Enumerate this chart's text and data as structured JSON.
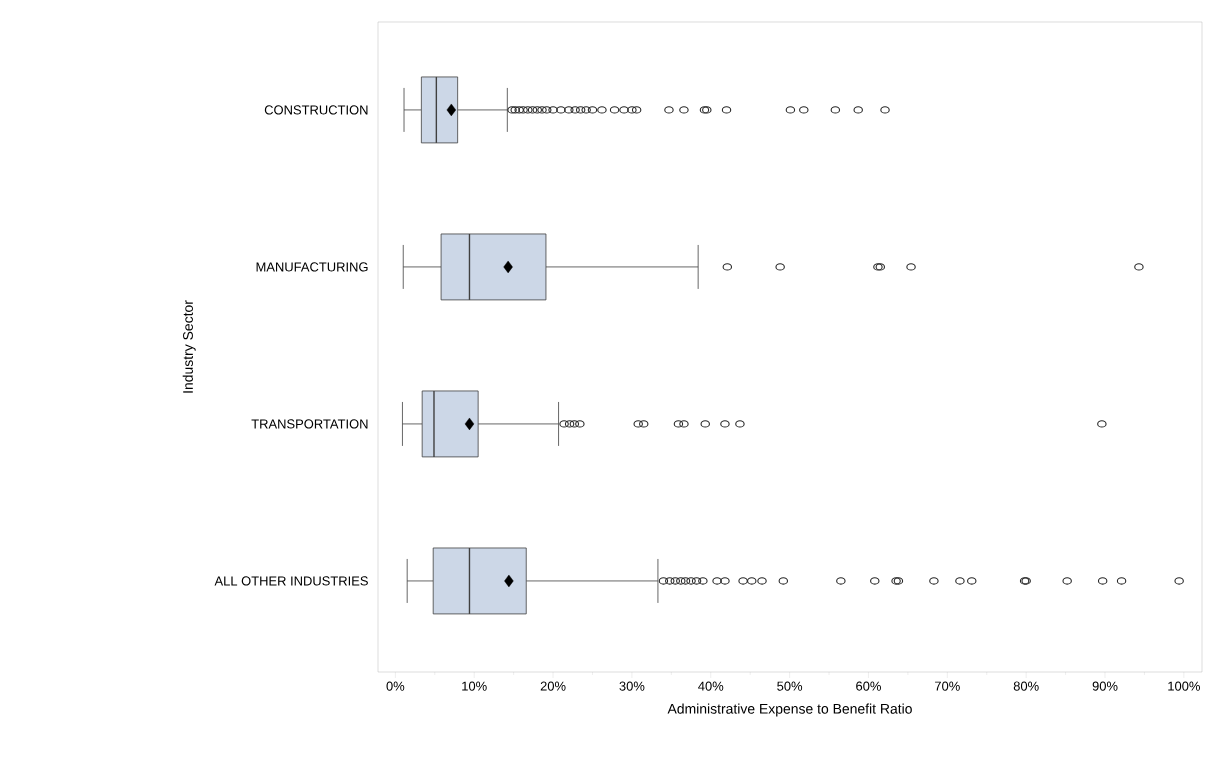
{
  "chart_data": {
    "type": "box",
    "orientation": "horizontal",
    "xlabel": "Administrative Expense to Benefit Ratio",
    "ylabel": "Industry Sector",
    "categories": [
      "CONSTRUCTION",
      "MANUFACTURING",
      "TRANSPORTATION",
      "ALL OTHER INDUSTRIES"
    ],
    "xlim": [
      -2.2,
      102.3
    ],
    "xticks": [
      {
        "value": 0,
        "label": "0%"
      },
      {
        "value": 10,
        "label": "10%"
      },
      {
        "value": 20,
        "label": "20%"
      },
      {
        "value": 30,
        "label": "30%"
      },
      {
        "value": 40,
        "label": "40%"
      },
      {
        "value": 50,
        "label": "50%"
      },
      {
        "value": 60,
        "label": "60%"
      },
      {
        "value": 70,
        "label": "70%"
      },
      {
        "value": 80,
        "label": "80%"
      },
      {
        "value": 90,
        "label": "90%"
      },
      {
        "value": 100,
        "label": "100%"
      }
    ],
    "grid": false,
    "series": [
      {
        "color": "#ccd7e7",
        "boxes": [
          {
            "low": 1.1,
            "q1": 3.3,
            "median": 5.2,
            "q3": 7.9,
            "high": 14.2,
            "mean": 7.1,
            "outliers": [
              14.8,
              15.2,
              15.7,
              16.2,
              16.8,
              17.4,
              18.0,
              18.6,
              19.2,
              20.0,
              21.0,
              22.0,
              22.8,
              23.5,
              24.2,
              25.0,
              26.2,
              27.8,
              29.0,
              30.0,
              30.6,
              34.7,
              36.6,
              39.2,
              39.5,
              42.0,
              50.1,
              51.8,
              55.8,
              58.7,
              62.1
            ]
          },
          {
            "low": 1.0,
            "q1": 5.8,
            "median": 9.4,
            "q3": 19.1,
            "high": 38.4,
            "mean": 14.3,
            "outliers": [
              42.1,
              48.8,
              61.2,
              61.5,
              65.4,
              94.3
            ]
          },
          {
            "low": 0.9,
            "q1": 3.4,
            "median": 4.9,
            "q3": 10.5,
            "high": 20.7,
            "mean": 9.4,
            "outliers": [
              21.4,
              22.1,
              22.7,
              23.4,
              30.8,
              31.5,
              35.9,
              36.6,
              39.3,
              41.8,
              43.7,
              89.6
            ]
          },
          {
            "low": 1.5,
            "q1": 4.8,
            "median": 9.4,
            "q3": 16.6,
            "high": 33.3,
            "mean": 14.4,
            "outliers": [
              34.0,
              34.8,
              35.5,
              36.2,
              36.8,
              37.5,
              38.2,
              39.0,
              40.8,
              41.8,
              44.1,
              45.2,
              46.5,
              49.2,
              56.5,
              60.8,
              63.5,
              63.8,
              68.3,
              71.6,
              73.1,
              79.8,
              80.0,
              85.2,
              89.7,
              92.1,
              99.4
            ]
          }
        ]
      }
    ]
  }
}
